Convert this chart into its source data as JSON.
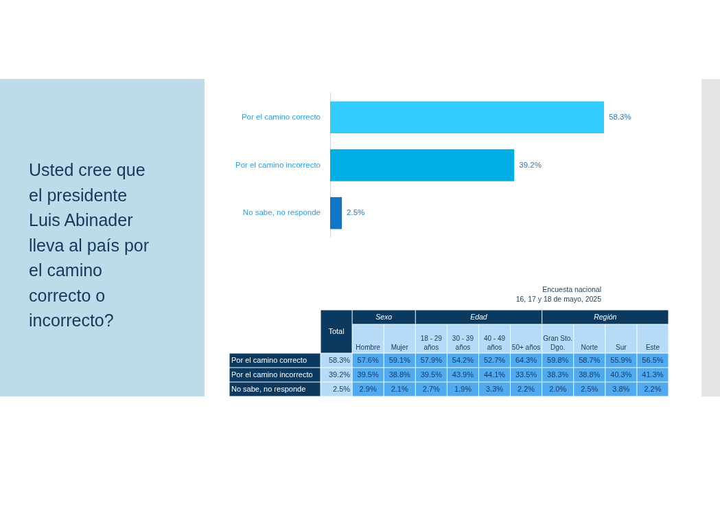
{
  "chart_data": [
    {
      "type": "bar",
      "orientation": "horizontal",
      "title": "Usted cree que el presidente Luis Abinader lleva al país por el camino correcto o incorrecto?",
      "categories": [
        "Por el camino correcto",
        "Por el camino incorrecto",
        "No sabe, no responde"
      ],
      "values": [
        58.3,
        39.2,
        2.5
      ],
      "colors": [
        "#33ccff",
        "#00aee6",
        "#1076c8"
      ],
      "value_labels": [
        "58.3%",
        "39.2%",
        "2.5%"
      ],
      "tick_labels": "y",
      "annotations": [
        "Encuesta nacional",
        "16, 17 y 18 de mayo, 2025"
      ]
    },
    {
      "type": "heatmap",
      "categories": [
        "Total",
        "Hombre",
        "Mujer",
        "18 - 29 años",
        "30 - 39 años",
        "40 - 49 años",
        "50+ años",
        "Gran Sto. Dgo.",
        "Norte",
        "Sur",
        "Este"
      ],
      "y_categories": [
        "Por el camino correcto",
        "Por el camino incorrecto",
        "No sabe, no responde"
      ],
      "cells": [
        [
          58.3,
          57.6,
          59.1,
          57.9,
          54.2,
          52.7,
          64.3,
          59.8,
          58.7,
          55.9,
          56.5
        ],
        [
          39.2,
          39.5,
          38.8,
          39.5,
          43.9,
          44.1,
          33.5,
          38.3,
          38.8,
          40.3,
          41.3
        ],
        [
          2.5,
          2.9,
          2.1,
          2.7,
          1.9,
          3.3,
          2.2,
          2.0,
          2.5,
          3.8,
          2.2
        ]
      ],
      "cell_labels": [
        [
          "58.3%",
          "57.6%",
          "59.1%",
          "57.9%",
          "54.2%",
          "52.7%",
          "64.3%",
          "59.8%",
          "58.7%",
          "55.9%",
          "56.5%"
        ],
        [
          "39.2%",
          "39.5%",
          "38.8%",
          "39.5%",
          "43.9%",
          "44.1%",
          "33.5%",
          "38.3%",
          "38.8%",
          "40.3%",
          "41.3%"
        ],
        [
          "2.5%",
          "2.9%",
          "2.1%",
          "2.7%",
          "1.9%",
          "3.3%",
          "2.2%",
          "2.0%",
          "2.5%",
          "3.8%",
          "2.2%"
        ]
      ],
      "annotations": [
        "Sexo",
        "Edad",
        "Región"
      ]
    }
  ]
}
